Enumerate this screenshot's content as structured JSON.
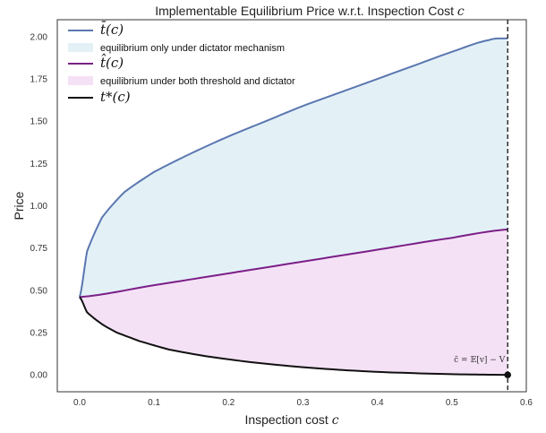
{
  "chart_data": {
    "type": "line",
    "title_prefix": "Implementable Equilibrium Price w.r.t. Inspection Cost ",
    "title_var": "c",
    "xlabel_prefix": "Inspection cost ",
    "xlabel_var": "c",
    "ylabel": "Price",
    "xlim": [
      -0.03,
      0.6
    ],
    "ylim": [
      -0.1,
      2.1
    ],
    "x_ticks": [
      "0.0",
      "0.1",
      "0.2",
      "0.3",
      "0.4",
      "0.5",
      "0.6"
    ],
    "y_ticks": [
      "0.00",
      "0.25",
      "0.50",
      "0.75",
      "1.00",
      "1.25",
      "1.50",
      "1.75",
      "2.00"
    ],
    "grid": false,
    "legend_position": "top-left",
    "legend": [
      {
        "label": "t̄(c)",
        "kind": "line",
        "color": "#5b77b0",
        "math": true
      },
      {
        "label": "equilibrium only under dictator mechanism",
        "kind": "patch",
        "color": "#e3f1f7",
        "math": false
      },
      {
        "label": "t̂(c)",
        "kind": "line",
        "color": "#7b1f87",
        "math": true
      },
      {
        "label": "equilibrium under both threshold and dictator",
        "kind": "patch",
        "color": "#f5e1f6",
        "math": false
      },
      {
        "label": "t*(c)",
        "kind": "line",
        "color": "#111111",
        "math": true
      }
    ],
    "series": [
      {
        "key": "t_bar",
        "x": [
          0.0,
          0.01,
          0.03,
          0.06,
          0.1,
          0.15,
          0.2,
          0.25,
          0.3,
          0.35,
          0.4,
          0.45,
          0.5,
          0.55,
          0.575
        ],
        "y": [
          0.46,
          0.73,
          0.93,
          1.08,
          1.2,
          1.31,
          1.41,
          1.5,
          1.59,
          1.67,
          1.75,
          1.83,
          1.91,
          1.98,
          1.99
        ],
        "color": "#5b77b0"
      },
      {
        "key": "t_hat",
        "x": [
          0.0,
          0.1,
          0.2,
          0.3,
          0.4,
          0.5,
          0.575
        ],
        "y": [
          0.46,
          0.53,
          0.6,
          0.67,
          0.74,
          0.81,
          0.86
        ],
        "color": "#7b1f87"
      },
      {
        "key": "t_star",
        "x": [
          0.0,
          0.01,
          0.03,
          0.05,
          0.08,
          0.12,
          0.17,
          0.23,
          0.3,
          0.38,
          0.45,
          0.5,
          0.55,
          0.575
        ],
        "y": [
          0.46,
          0.37,
          0.3,
          0.25,
          0.2,
          0.15,
          0.11,
          0.075,
          0.045,
          0.022,
          0.01,
          0.004,
          0.001,
          0.0
        ],
        "color": "#111111"
      }
    ],
    "fills": [
      {
        "between": [
          "t_hat",
          "t_bar"
        ],
        "color": "#e3f1f7"
      },
      {
        "between": [
          "t_star",
          "t_hat"
        ],
        "color": "#f5e1f6"
      }
    ],
    "vline": {
      "x": 0.575,
      "style": "dashed",
      "color": "#111111"
    },
    "marker": {
      "x": 0.575,
      "y": 0.0,
      "color": "#111111"
    },
    "annotation": {
      "text": "c̄ = 𝔼[v] − V",
      "x": 0.575,
      "y": 0.0
    }
  }
}
